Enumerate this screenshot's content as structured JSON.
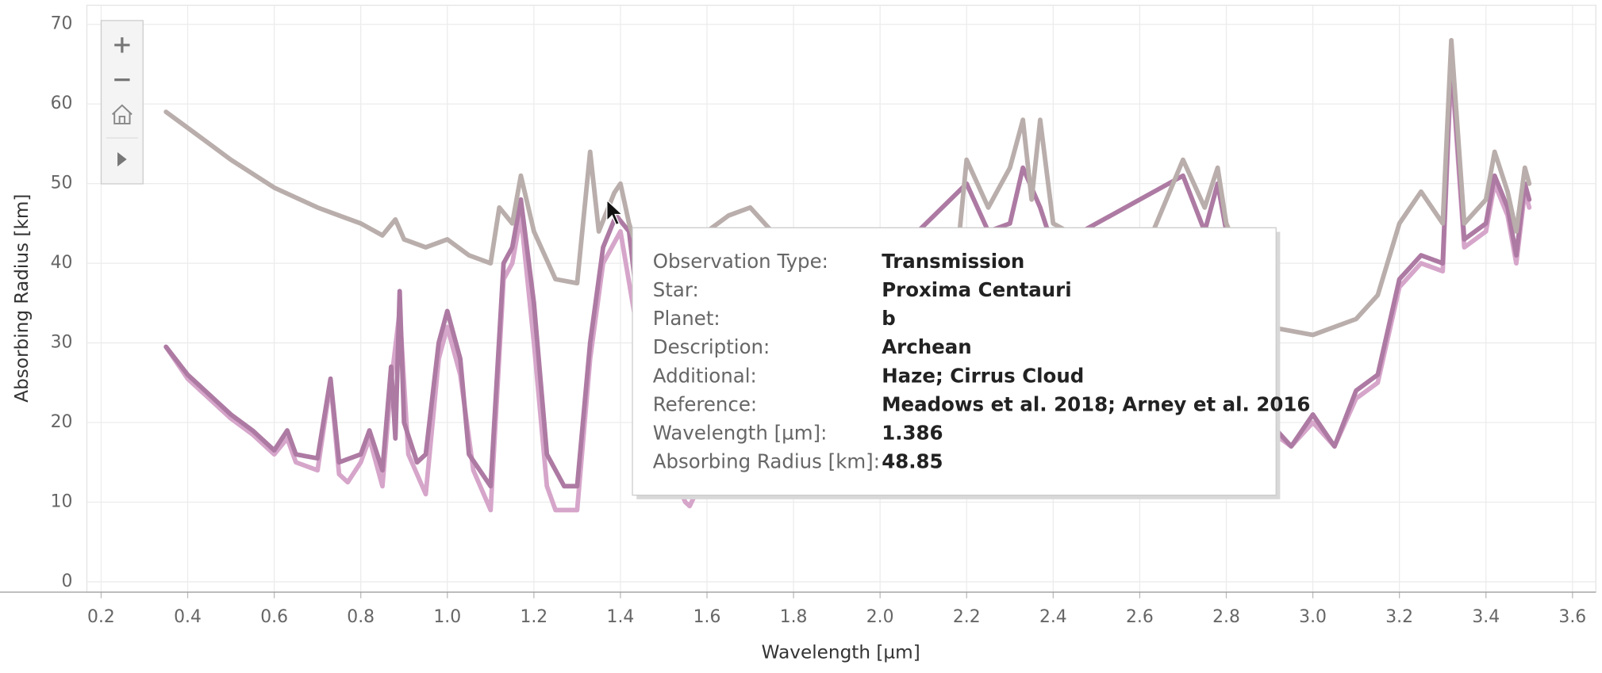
{
  "chart_data": {
    "type": "line",
    "x_label": "Wavelength [µm]",
    "y_label": "Absorbing Radius [km]",
    "xlim": [
      0.167,
      3.654
    ],
    "ylim": [
      -1.3,
      72.4
    ],
    "xticks": [
      0.2,
      0.4,
      0.6,
      0.8,
      {
        "value": 1,
        "label": "1.0"
      },
      1.2,
      1.4,
      1.6,
      1.8,
      {
        "value": 2,
        "label": "2.0"
      },
      2.2,
      2.4,
      2.6,
      2.8,
      {
        "value": 3,
        "label": "3.0"
      },
      3.2,
      3.4,
      3.6
    ],
    "yticks": [
      0,
      10,
      20,
      30,
      40,
      50,
      60,
      70
    ],
    "grid": true,
    "series": [
      {
        "color": "#d6a5ca",
        "x": [
          0.35,
          0.4,
          0.5,
          0.55,
          0.6,
          0.63,
          0.65,
          0.7,
          0.73,
          0.75,
          0.77,
          0.8,
          0.82,
          0.85,
          0.87,
          0.89,
          0.91,
          0.95,
          0.98,
          1.0,
          1.03,
          1.06,
          1.1,
          1.13,
          1.15,
          1.17,
          1.2,
          1.23,
          1.25,
          1.3,
          1.33,
          1.36,
          1.4,
          1.45,
          1.5,
          1.55,
          1.56,
          1.6,
          2.9,
          2.95,
          3.0,
          3.05,
          3.1,
          3.15,
          3.2,
          3.25,
          3.3,
          3.32,
          3.35,
          3.4,
          3.42,
          3.45,
          3.47,
          3.49,
          3.5
        ],
        "values": [
          29.5,
          25.5,
          20.5,
          18.5,
          16,
          18,
          15,
          14,
          25,
          13.5,
          12.5,
          15,
          18,
          12,
          25,
          34,
          16,
          11,
          28,
          32,
          26,
          14,
          9,
          38,
          40,
          46,
          30,
          12,
          9,
          9,
          28,
          40,
          44,
          28,
          16,
          10,
          9.5,
          14,
          19,
          17,
          20,
          17,
          23,
          25,
          37,
          40,
          39,
          65,
          42,
          44,
          50,
          46,
          40,
          49,
          47
        ]
      },
      {
        "color": "#ad7aa3",
        "x": [
          0.35,
          0.4,
          0.5,
          0.55,
          0.6,
          0.63,
          0.65,
          0.7,
          0.73,
          0.75,
          0.8,
          0.82,
          0.85,
          0.87,
          0.88,
          0.89,
          0.9,
          0.93,
          0.95,
          0.98,
          1.0,
          1.03,
          1.05,
          1.1,
          1.13,
          1.15,
          1.17,
          1.2,
          1.23,
          1.27,
          1.3,
          1.33,
          1.36,
          1.39,
          1.42,
          1.45,
          1.5,
          1.55,
          1.6,
          2.2,
          2.25,
          2.3,
          2.33,
          2.37,
          2.4,
          2.7,
          2.75,
          2.78,
          2.8,
          2.9,
          2.95,
          3.0,
          3.05,
          3.1,
          3.15,
          3.2,
          3.25,
          3.3,
          3.32,
          3.35,
          3.4,
          3.42,
          3.45,
          3.47,
          3.49,
          3.5
        ],
        "values": [
          29.5,
          26,
          21,
          19,
          16.5,
          19,
          16,
          15.5,
          25.5,
          15,
          16,
          19,
          14,
          27,
          18,
          36.5,
          20,
          15,
          16,
          30,
          34,
          28,
          16,
          12,
          40,
          42,
          48,
          35,
          16,
          12,
          12,
          30,
          42,
          46,
          44,
          30,
          20,
          12,
          18,
          50,
          44,
          45,
          52,
          47,
          42,
          51,
          44,
          50,
          44,
          20,
          17,
          21,
          17,
          24,
          26,
          38,
          41,
          40,
          66,
          43,
          45,
          51,
          47,
          41,
          50,
          48
        ]
      },
      {
        "color": "#b9aeab",
        "x": [
          0.35,
          0.4,
          0.5,
          0.6,
          0.7,
          0.75,
          0.8,
          0.85,
          0.88,
          0.9,
          0.95,
          1.0,
          1.05,
          1.1,
          1.12,
          1.15,
          1.17,
          1.2,
          1.25,
          1.3,
          1.33,
          1.35,
          1.386,
          1.4,
          1.42,
          1.45,
          1.5,
          1.55,
          1.6,
          1.65,
          1.7,
          1.75,
          1.8,
          1.9,
          2.0,
          2.1,
          2.18,
          2.2,
          2.25,
          2.3,
          2.33,
          2.35,
          2.37,
          2.4,
          2.5,
          2.6,
          2.7,
          2.75,
          2.78,
          2.8,
          2.9,
          3.0,
          3.1,
          3.15,
          3.2,
          3.25,
          3.3,
          3.32,
          3.35,
          3.4,
          3.42,
          3.45,
          3.47,
          3.49,
          3.5
        ],
        "values": [
          59,
          57,
          53,
          49.5,
          47,
          46,
          45,
          43.5,
          45.5,
          43,
          42,
          43,
          41,
          40,
          47,
          45,
          51,
          44,
          38,
          37.5,
          54,
          44,
          48.85,
          50,
          45,
          40,
          38,
          40,
          44,
          46,
          47,
          44,
          44,
          42,
          40,
          40,
          42,
          53,
          47,
          52,
          58,
          48,
          58,
          45,
          42,
          40,
          53,
          47,
          52,
          45,
          32,
          31,
          33,
          36,
          45,
          49,
          45,
          68,
          45,
          48,
          54,
          49,
          44,
          52,
          50
        ]
      }
    ]
  },
  "tooltip": {
    "rows": [
      [
        "Observation Type:",
        "Transmission"
      ],
      [
        "Star:",
        "Proxima Centauri"
      ],
      [
        "Planet:",
        "b"
      ],
      [
        "Description:",
        "Archean"
      ],
      [
        "Additional:",
        "Haze; Cirrus Cloud"
      ],
      [
        "Reference:",
        "Meadows et al. 2018; Arney et al. 2016"
      ],
      [
        "Wavelength [µm]:",
        "1.386"
      ],
      [
        "Absorbing Radius [km]:",
        "48.85"
      ]
    ]
  }
}
